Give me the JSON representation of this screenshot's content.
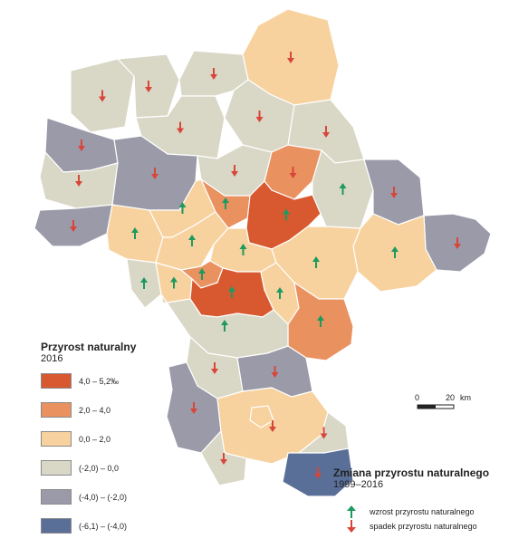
{
  "colors": {
    "c1": "#d8582f",
    "c2": "#ea9160",
    "c3": "#f7d29e",
    "c4": "#d9d7c6",
    "c5": "#9a9aa9",
    "c6": "#5a6f98",
    "border": "#ffffff",
    "up_arrow": "#1e9a5f",
    "down_arrow": "#d8463a"
  },
  "legend": {
    "title": "Przyrost naturalny",
    "subtitle": "2016",
    "classes": [
      {
        "label": "4,0 – 5,2‰",
        "color_key": "c1"
      },
      {
        "label": "2,0 – 4,0",
        "color_key": "c2"
      },
      {
        "label": "0,0 – 2,0",
        "color_key": "c3"
      },
      {
        "label": "(-2,0) – 0,0",
        "color_key": "c4"
      },
      {
        "label": "(-4,0) – (-2,0)",
        "color_key": "c5"
      },
      {
        "label": "(-6,1) – (-4,0)",
        "color_key": "c6"
      }
    ]
  },
  "trend_legend": {
    "title": "Zmiana przyrostu naturalnego",
    "subtitle": "1999–2016",
    "up_label": "wzrost przyrostu naturalnego",
    "down_label": "spadek przyrostu naturalnego",
    "up_icon": "arrow-up-icon",
    "down_icon": "arrow-down-icon"
  },
  "scale_bar": {
    "start": "0",
    "end": "20",
    "unit": "km"
  },
  "regions": [
    {
      "id": "zuromin",
      "cls": "c4",
      "trend": "down"
    },
    {
      "id": "mlawa",
      "cls": "c4",
      "trend": "down"
    },
    {
      "id": "przasnysz",
      "cls": "c4",
      "trend": "down"
    },
    {
      "id": "ostroleka",
      "cls": "c3",
      "trend": "down"
    },
    {
      "id": "sierpc",
      "cls": "c5",
      "trend": "down"
    },
    {
      "id": "ciechanow",
      "cls": "c4",
      "trend": "down"
    },
    {
      "id": "makow",
      "cls": "c4",
      "trend": "down"
    },
    {
      "id": "ostrow",
      "cls": "c4",
      "trend": "down"
    },
    {
      "id": "plock",
      "cls": "c4",
      "trend": "down"
    },
    {
      "id": "plonsk",
      "cls": "c5",
      "trend": "down"
    },
    {
      "id": "pultusk",
      "cls": "c4",
      "trend": "down"
    },
    {
      "id": "wyszkow",
      "cls": "c2",
      "trend": "down"
    },
    {
      "id": "gostynin",
      "cls": "c5",
      "trend": "down"
    },
    {
      "id": "sochaczew",
      "cls": "c3",
      "trend": "up"
    },
    {
      "id": "nowy-dwor",
      "cls": "c3",
      "trend": "up"
    },
    {
      "id": "legionowo",
      "cls": "c2",
      "trend": "up"
    },
    {
      "id": "wolomin",
      "cls": "c1",
      "trend": "up"
    },
    {
      "id": "wegrow",
      "cls": "c4",
      "trend": "up"
    },
    {
      "id": "sokolow",
      "cls": "c5",
      "trend": "down"
    },
    {
      "id": "losice",
      "cls": "c5",
      "trend": "down"
    },
    {
      "id": "siedlce",
      "cls": "c3",
      "trend": "up"
    },
    {
      "id": "minsk",
      "cls": "c3",
      "trend": "up"
    },
    {
      "id": "warszawa-zach",
      "cls": "c3",
      "trend": "up"
    },
    {
      "id": "warszawa",
      "cls": "c3",
      "trend": "up"
    },
    {
      "id": "zyrardow",
      "cls": "c4",
      "trend": "up"
    },
    {
      "id": "grodzisk",
      "cls": "c3",
      "trend": "up"
    },
    {
      "id": "pruszkow",
      "cls": "c2",
      "trend": "up"
    },
    {
      "id": "piaseczno",
      "cls": "c1",
      "trend": "up"
    },
    {
      "id": "otwock",
      "cls": "c3",
      "trend": "up"
    },
    {
      "id": "garwolin",
      "cls": "c2",
      "trend": "up"
    },
    {
      "id": "grojec",
      "cls": "c4",
      "trend": "up"
    },
    {
      "id": "bialobrzegi",
      "cls": "c4",
      "trend": "down"
    },
    {
      "id": "kozienice",
      "cls": "c5",
      "trend": "down"
    },
    {
      "id": "przysucha",
      "cls": "c5",
      "trend": "down"
    },
    {
      "id": "radom",
      "cls": "c3",
      "trend": "down"
    },
    {
      "id": "zwolen",
      "cls": "c4",
      "trend": "down"
    },
    {
      "id": "szydlowiec",
      "cls": "c4",
      "trend": "down"
    },
    {
      "id": "lipsko",
      "cls": "c6",
      "trend": "down"
    },
    {
      "id": "radom-city",
      "cls": "c3",
      "trend": "down"
    }
  ]
}
